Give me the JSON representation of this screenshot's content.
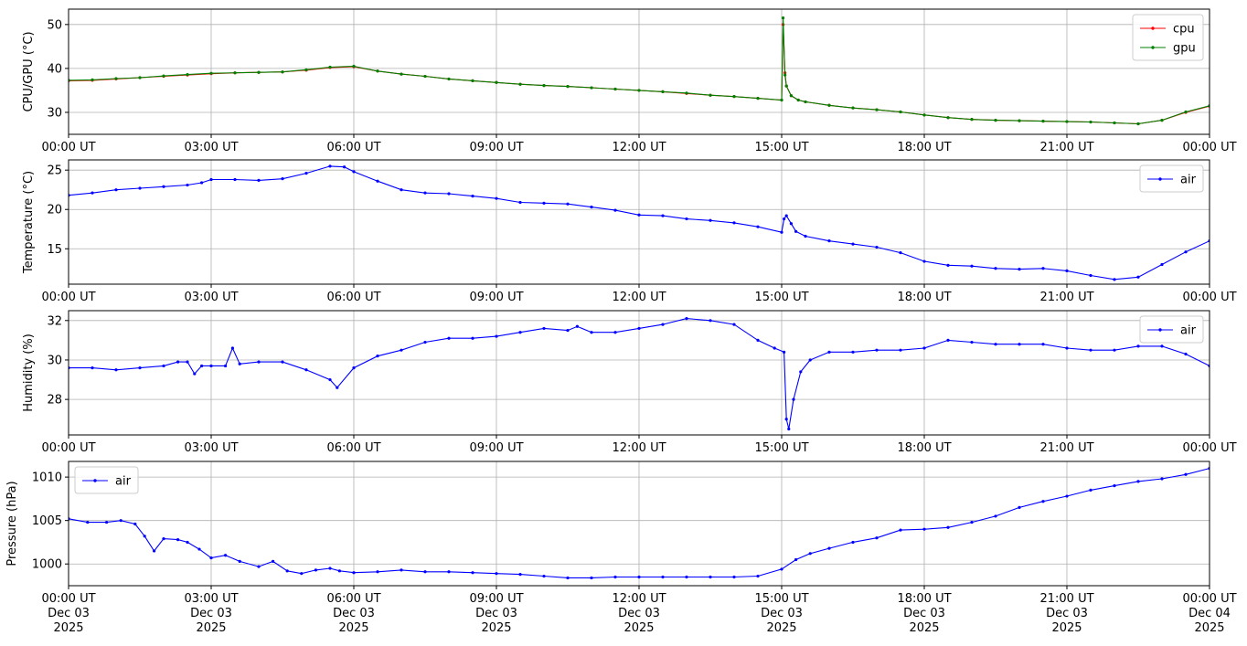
{
  "chart_data": [
    {
      "type": "line",
      "ylabel": "CPU/GPU (°C)",
      "ylim": [
        25,
        53.5
      ],
      "yticks": [
        30,
        40,
        50
      ],
      "xlim": [
        0,
        24
      ],
      "xtick_labels": [
        "00:00 UT",
        "03:00 UT",
        "06:00 UT",
        "09:00 UT",
        "12:00 UT",
        "15:00 UT",
        "18:00 UT",
        "21:00 UT",
        "00:00 UT"
      ],
      "grid": true,
      "legend": "top-right",
      "series": [
        {
          "name": "cpu",
          "color": "#ff0000",
          "x": [
            0,
            0.5,
            1,
            1.5,
            2,
            2.5,
            3,
            3.5,
            4,
            4.5,
            5,
            5.5,
            6,
            6.5,
            7,
            7.5,
            8,
            8.5,
            9,
            9.5,
            10,
            10.5,
            11,
            11.5,
            12,
            12.5,
            13,
            13.5,
            14,
            14.5,
            15,
            15.03,
            15.07,
            15.1,
            15.2,
            15.35,
            15.5,
            16,
            16.5,
            17,
            17.5,
            18,
            18.5,
            19,
            19.5,
            20,
            20.5,
            21,
            21.5,
            22,
            22.5,
            23,
            23.5,
            24
          ],
          "y": [
            37.2,
            37.3,
            37.6,
            37.9,
            38.2,
            38.5,
            38.8,
            39.0,
            39.1,
            39.2,
            39.6,
            40.2,
            40.4,
            39.4,
            38.7,
            38.2,
            37.6,
            37.2,
            36.8,
            36.4,
            36.1,
            35.9,
            35.6,
            35.3,
            35.0,
            34.7,
            34.3,
            33.9,
            33.6,
            33.2,
            32.8,
            50.0,
            39.0,
            36.0,
            33.8,
            32.8,
            32.4,
            31.6,
            31.0,
            30.6,
            30.1,
            29.4,
            28.8,
            28.4,
            28.2,
            28.1,
            28.0,
            27.9,
            27.8,
            27.6,
            27.4,
            28.2,
            30.0,
            31.4
          ]
        },
        {
          "name": "gpu",
          "color": "#008000",
          "x": [
            0,
            0.5,
            1,
            1.5,
            2,
            2.5,
            3,
            3.5,
            4,
            4.5,
            5,
            5.5,
            6,
            6.5,
            7,
            7.5,
            8,
            8.5,
            9,
            9.5,
            10,
            10.5,
            11,
            11.5,
            12,
            12.5,
            13,
            13.5,
            14,
            14.5,
            15,
            15.03,
            15.07,
            15.1,
            15.2,
            15.35,
            15.5,
            16,
            16.5,
            17,
            17.5,
            18,
            18.5,
            19,
            19.5,
            20,
            20.5,
            21,
            21.5,
            22,
            22.5,
            23,
            23.5,
            24
          ],
          "y": [
            37.3,
            37.4,
            37.7,
            37.9,
            38.3,
            38.6,
            38.9,
            39.0,
            39.1,
            39.2,
            39.7,
            40.3,
            40.5,
            39.4,
            38.7,
            38.2,
            37.6,
            37.2,
            36.8,
            36.4,
            36.1,
            35.9,
            35.6,
            35.3,
            35.0,
            34.7,
            34.4,
            33.9,
            33.6,
            33.2,
            32.8,
            51.5,
            38.5,
            36.0,
            33.8,
            32.8,
            32.4,
            31.6,
            31.0,
            30.6,
            30.1,
            29.4,
            28.8,
            28.4,
            28.2,
            28.1,
            28.0,
            27.9,
            27.8,
            27.6,
            27.4,
            28.2,
            30.1,
            31.5
          ]
        }
      ]
    },
    {
      "type": "line",
      "ylabel": "Temperature (°C)",
      "ylim": [
        10.5,
        26.3
      ],
      "yticks": [
        15,
        20,
        25
      ],
      "xlim": [
        0,
        24
      ],
      "xtick_labels": [
        "00:00 UT",
        "03:00 UT",
        "06:00 UT",
        "09:00 UT",
        "12:00 UT",
        "15:00 UT",
        "18:00 UT",
        "21:00 UT",
        "00:00 UT"
      ],
      "grid": true,
      "legend": "top-right",
      "series": [
        {
          "name": "air",
          "color": "#0000ff",
          "x": [
            0,
            0.5,
            1,
            1.5,
            2,
            2.5,
            2.8,
            3,
            3.5,
            4,
            4.5,
            5,
            5.5,
            5.8,
            6,
            6.5,
            7,
            7.5,
            8,
            8.5,
            9,
            9.5,
            10,
            10.5,
            11,
            11.5,
            12,
            12.5,
            13,
            13.5,
            14,
            14.5,
            15,
            15.05,
            15.1,
            15.2,
            15.3,
            15.5,
            16,
            16.5,
            17,
            17.5,
            18,
            18.5,
            19,
            19.5,
            20,
            20.5,
            21,
            21.5,
            22,
            22.5,
            23,
            23.5,
            24
          ],
          "y": [
            21.8,
            22.1,
            22.5,
            22.7,
            22.9,
            23.1,
            23.4,
            23.8,
            23.8,
            23.7,
            23.9,
            24.6,
            25.5,
            25.4,
            24.8,
            23.6,
            22.5,
            22.1,
            22.0,
            21.7,
            21.4,
            20.9,
            20.8,
            20.7,
            20.3,
            19.9,
            19.3,
            19.2,
            18.8,
            18.6,
            18.3,
            17.8,
            17.1,
            18.8,
            19.2,
            18.2,
            17.2,
            16.6,
            16.0,
            15.6,
            15.2,
            14.5,
            13.4,
            12.9,
            12.8,
            12.5,
            12.4,
            12.5,
            12.2,
            11.6,
            11.1,
            11.4,
            13.0,
            14.6,
            16.0
          ]
        }
      ]
    },
    {
      "type": "line",
      "ylabel": "Humidity (%)",
      "ylim": [
        26.2,
        32.5
      ],
      "yticks": [
        28,
        30,
        32
      ],
      "xlim": [
        0,
        24
      ],
      "xtick_labels": [
        "00:00 UT",
        "03:00 UT",
        "06:00 UT",
        "09:00 UT",
        "12:00 UT",
        "15:00 UT",
        "18:00 UT",
        "21:00 UT",
        "00:00 UT"
      ],
      "grid": true,
      "legend": "top-right",
      "series": [
        {
          "name": "air",
          "color": "#0000ff",
          "x": [
            0,
            0.5,
            1,
            1.5,
            2,
            2.3,
            2.5,
            2.65,
            2.8,
            3,
            3.3,
            3.45,
            3.6,
            4,
            4.5,
            5,
            5.5,
            5.65,
            6,
            6.5,
            7,
            7.5,
            8,
            8.5,
            9,
            9.5,
            10,
            10.5,
            10.7,
            11,
            11.5,
            12,
            12.5,
            13,
            13.5,
            14,
            14.5,
            14.85,
            15.05,
            15.1,
            15.15,
            15.25,
            15.4,
            15.6,
            16,
            16.5,
            17,
            17.5,
            18,
            18.5,
            19,
            19.5,
            20,
            20.5,
            21,
            21.5,
            22,
            22.5,
            23,
            23.5,
            24
          ],
          "y": [
            29.6,
            29.6,
            29.5,
            29.6,
            29.7,
            29.9,
            29.9,
            29.3,
            29.7,
            29.7,
            29.7,
            30.6,
            29.8,
            29.9,
            29.9,
            29.5,
            29.0,
            28.6,
            29.6,
            30.2,
            30.5,
            30.9,
            31.1,
            31.1,
            31.2,
            31.4,
            31.6,
            31.5,
            31.7,
            31.4,
            31.4,
            31.6,
            31.8,
            32.1,
            32.0,
            31.8,
            31.0,
            30.6,
            30.4,
            27.0,
            26.5,
            28.0,
            29.4,
            30.0,
            30.4,
            30.4,
            30.5,
            30.5,
            30.6,
            31.0,
            30.9,
            30.8,
            30.8,
            30.8,
            30.6,
            30.5,
            30.5,
            30.7,
            30.7,
            30.3,
            29.7
          ]
        }
      ]
    },
    {
      "type": "line",
      "ylabel": "Pressure (hPa)",
      "ylim": [
        997.5,
        1011.8
      ],
      "yticks": [
        1000,
        1005,
        1010
      ],
      "xlim": [
        0,
        24
      ],
      "xtick_labels": [
        "00:00 UT\nDec 03\n2025",
        "03:00 UT\nDec 03\n2025",
        "06:00 UT\nDec 03\n2025",
        "09:00 UT\nDec 03\n2025",
        "12:00 UT\nDec 03\n2025",
        "15:00 UT\nDec 03\n2025",
        "18:00 UT\nDec 03\n2025",
        "21:00 UT\nDec 03\n2025",
        "00:00 UT\nDec 04\n2025"
      ],
      "grid": true,
      "legend": "top-left",
      "series": [
        {
          "name": "air",
          "color": "#0000ff",
          "x": [
            0,
            0.4,
            0.8,
            1.1,
            1.4,
            1.6,
            1.8,
            2,
            2.3,
            2.5,
            2.75,
            3,
            3.3,
            3.6,
            4,
            4.3,
            4.6,
            4.9,
            5.2,
            5.5,
            5.7,
            6,
            6.5,
            7,
            7.5,
            8,
            8.5,
            9,
            9.5,
            10,
            10.5,
            11,
            11.5,
            12,
            12.5,
            13,
            13.5,
            14,
            14.5,
            15,
            15.3,
            15.6,
            16,
            16.5,
            17,
            17.5,
            18,
            18.5,
            19,
            19.5,
            20,
            20.5,
            21,
            21.5,
            22,
            22.5,
            23,
            23.5,
            24
          ],
          "y": [
            1005.2,
            1004.8,
            1004.8,
            1005.0,
            1004.6,
            1003.2,
            1001.5,
            1002.9,
            1002.8,
            1002.5,
            1001.7,
            1000.7,
            1001.0,
            1000.3,
            999.7,
            1000.3,
            999.2,
            998.9,
            999.3,
            999.5,
            999.2,
            999.0,
            999.1,
            999.3,
            999.1,
            999.1,
            999.0,
            998.9,
            998.8,
            998.6,
            998.4,
            998.4,
            998.5,
            998.5,
            998.5,
            998.5,
            998.5,
            998.5,
            998.6,
            999.4,
            1000.5,
            1001.2,
            1001.8,
            1002.5,
            1003.0,
            1003.9,
            1004.0,
            1004.2,
            1004.8,
            1005.5,
            1006.5,
            1007.2,
            1007.8,
            1008.5,
            1009.0,
            1009.5,
            1009.8,
            1010.3,
            1011.0
          ]
        }
      ]
    }
  ]
}
